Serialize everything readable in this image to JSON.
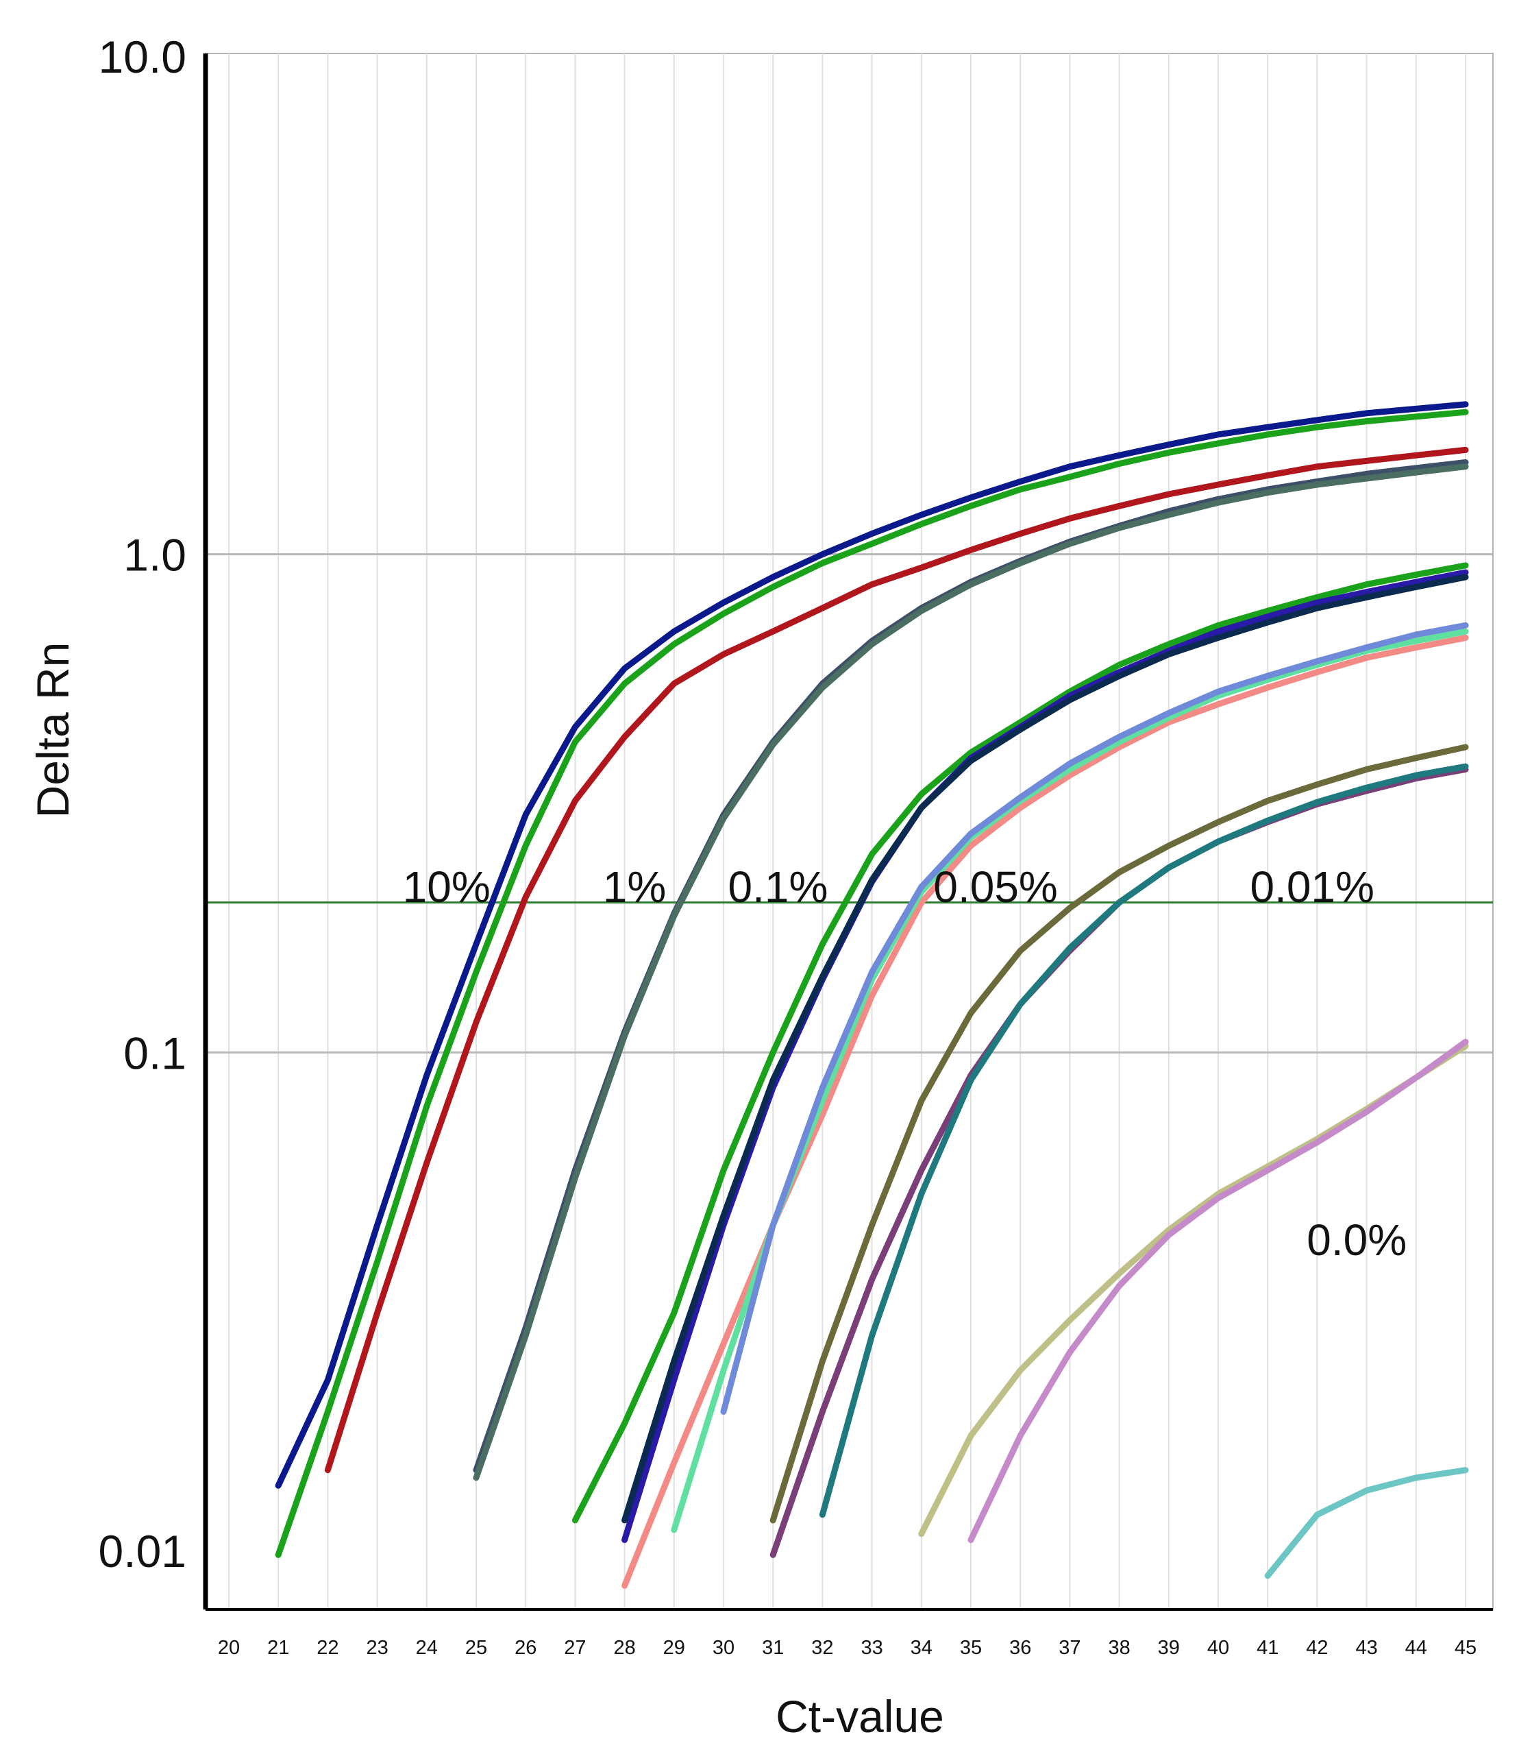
{
  "chart_data": {
    "type": "line",
    "title": "",
    "xlabel": "Ct-value",
    "ylabel": "Delta Rn",
    "yscale": "log",
    "xlim": [
      19.6,
      45.6
    ],
    "ylim": [
      0.0085,
      10.0
    ],
    "grid": "vertical gridlines at each Ct; horizontal gridlines at 1.0 and 0.1",
    "threshold": 0.2,
    "x_ticks": [
      20,
      21,
      22,
      23,
      24,
      25,
      26,
      27,
      28,
      29,
      30,
      31,
      32,
      33,
      34,
      35,
      36,
      37,
      38,
      39,
      40,
      41,
      42,
      43,
      44,
      45
    ],
    "y_ticks": [
      {
        "value": 10.0,
        "label": "10.0"
      },
      {
        "value": 1.0,
        "label": "1.0"
      },
      {
        "value": 0.1,
        "label": "0.1"
      },
      {
        "value": 0.01,
        "label": "0.01"
      }
    ],
    "annotations": [
      {
        "text": "10%",
        "x": 24.4,
        "y": 0.215
      },
      {
        "text": "1%",
        "x": 28.2,
        "y": 0.215
      },
      {
        "text": "0.1%",
        "x": 31.1,
        "y": 0.215
      },
      {
        "text": "0.05%",
        "x": 35.5,
        "y": 0.215
      },
      {
        "text": "0.01%",
        "x": 41.9,
        "y": 0.215
      },
      {
        "text": "0.0%",
        "x": 42.8,
        "y": 0.042
      }
    ],
    "series": [
      {
        "name": "10% replicate 1",
        "group": "10%",
        "color": "#0a1a8c",
        "x": [
          21,
          22,
          23,
          24,
          25,
          26,
          27,
          28,
          29,
          30,
          31,
          32,
          33,
          34,
          35,
          36,
          37,
          38,
          39,
          40,
          41,
          42,
          43,
          44,
          45
        ],
        "y": [
          0.0135,
          0.022,
          0.045,
          0.09,
          0.165,
          0.3,
          0.45,
          0.59,
          0.7,
          0.8,
          0.9,
          1.0,
          1.1,
          1.2,
          1.3,
          1.4,
          1.5,
          1.58,
          1.66,
          1.74,
          1.8,
          1.86,
          1.92,
          1.96,
          2.0
        ]
      },
      {
        "name": "10% replicate 2",
        "group": "10%",
        "color": "#1aa31a",
        "x": [
          21,
          22,
          23,
          24,
          25,
          26,
          27,
          28,
          29,
          30,
          31,
          32,
          33,
          34,
          35,
          36,
          37,
          38,
          39,
          40,
          41,
          42,
          43,
          44,
          45
        ],
        "y": [
          0.0098,
          0.019,
          0.038,
          0.078,
          0.145,
          0.26,
          0.42,
          0.55,
          0.66,
          0.76,
          0.86,
          0.96,
          1.05,
          1.15,
          1.25,
          1.35,
          1.43,
          1.52,
          1.6,
          1.67,
          1.74,
          1.8,
          1.85,
          1.89,
          1.93
        ]
      },
      {
        "name": "10% replicate 3",
        "group": "10%",
        "color": "#b0161c",
        "x": [
          22,
          23,
          24,
          25,
          26,
          27,
          28,
          29,
          30,
          31,
          32,
          33,
          34,
          35,
          36,
          37,
          38,
          39,
          40,
          41,
          42,
          43,
          44,
          45
        ],
        "y": [
          0.0145,
          0.03,
          0.06,
          0.115,
          0.205,
          0.32,
          0.43,
          0.55,
          0.63,
          0.7,
          0.78,
          0.87,
          0.94,
          1.02,
          1.1,
          1.18,
          1.25,
          1.32,
          1.38,
          1.44,
          1.5,
          1.54,
          1.58,
          1.62
        ]
      },
      {
        "name": "1% replicate 1",
        "group": "1%",
        "color": "#3d5068",
        "x": [
          25,
          26,
          27,
          28,
          29,
          30,
          31,
          32,
          33,
          34,
          35,
          36,
          37,
          38,
          39,
          40,
          41,
          42,
          43,
          44,
          45
        ],
        "y": [
          0.0145,
          0.028,
          0.058,
          0.11,
          0.19,
          0.3,
          0.42,
          0.55,
          0.67,
          0.78,
          0.88,
          0.97,
          1.06,
          1.14,
          1.22,
          1.29,
          1.35,
          1.4,
          1.45,
          1.49,
          1.53
        ]
      },
      {
        "name": "1% replicate 2",
        "group": "1%",
        "color": "#4a6e62",
        "x": [
          25,
          26,
          27,
          28,
          29,
          30,
          31,
          32,
          33,
          34,
          35,
          36,
          37,
          38,
          39,
          40,
          41,
          42,
          43,
          44,
          45
        ],
        "y": [
          0.014,
          0.027,
          0.056,
          0.108,
          0.188,
          0.295,
          0.415,
          0.54,
          0.66,
          0.77,
          0.87,
          0.96,
          1.05,
          1.13,
          1.2,
          1.27,
          1.33,
          1.38,
          1.42,
          1.46,
          1.5
        ]
      },
      {
        "name": "0.1% replicate 1",
        "group": "0.1%",
        "color": "#1aa31a",
        "x": [
          27,
          28,
          29,
          30,
          31,
          32,
          33,
          34,
          35,
          36,
          37,
          38,
          39,
          40,
          41,
          42,
          43,
          44,
          45
        ],
        "y": [
          0.0115,
          0.018,
          0.03,
          0.058,
          0.1,
          0.165,
          0.25,
          0.33,
          0.4,
          0.46,
          0.53,
          0.6,
          0.66,
          0.72,
          0.77,
          0.82,
          0.87,
          0.91,
          0.95
        ]
      },
      {
        "name": "0.1% replicate 2",
        "group": "0.1%",
        "color": "#2a1aa8",
        "x": [
          28,
          29,
          30,
          31,
          32,
          33,
          34,
          35,
          36,
          37,
          38,
          39,
          40,
          41,
          42,
          43,
          44,
          45
        ],
        "y": [
          0.0105,
          0.022,
          0.045,
          0.085,
          0.14,
          0.22,
          0.31,
          0.39,
          0.45,
          0.52,
          0.58,
          0.64,
          0.7,
          0.75,
          0.8,
          0.84,
          0.88,
          0.92
        ]
      },
      {
        "name": "0.1% replicate 3",
        "group": "0.1%",
        "color": "#0a2a50",
        "x": [
          28,
          29,
          30,
          31,
          32,
          33,
          34,
          35,
          36,
          37,
          38,
          39,
          40,
          41,
          42,
          43,
          44,
          45
        ],
        "y": [
          0.0115,
          0.024,
          0.047,
          0.088,
          0.142,
          0.222,
          0.31,
          0.385,
          0.445,
          0.51,
          0.57,
          0.63,
          0.68,
          0.73,
          0.78,
          0.82,
          0.86,
          0.9
        ]
      },
      {
        "name": "0.05% replicate 1",
        "group": "0.05%",
        "color": "#f48a86",
        "x": [
          28,
          29,
          30,
          31,
          32,
          33,
          34,
          35,
          36,
          37,
          38,
          39,
          40,
          41,
          42,
          43,
          44,
          45
        ],
        "y": [
          0.0085,
          0.015,
          0.026,
          0.045,
          0.075,
          0.13,
          0.2,
          0.26,
          0.31,
          0.36,
          0.41,
          0.46,
          0.5,
          0.54,
          0.58,
          0.62,
          0.65,
          0.68
        ]
      },
      {
        "name": "0.05% replicate 2",
        "group": "0.05%",
        "color": "#5fe0a0",
        "x": [
          29,
          30,
          31,
          32,
          33,
          34,
          35,
          36,
          37,
          38,
          39,
          40,
          41,
          42,
          43,
          44,
          45
        ],
        "y": [
          0.011,
          0.023,
          0.045,
          0.08,
          0.14,
          0.21,
          0.27,
          0.32,
          0.37,
          0.42,
          0.47,
          0.52,
          0.56,
          0.6,
          0.64,
          0.67,
          0.7
        ]
      },
      {
        "name": "0.05% replicate 3",
        "group": "0.05%",
        "color": "#6f8ad8",
        "x": [
          30,
          31,
          32,
          33,
          34,
          35,
          36,
          37,
          38,
          39,
          40,
          41,
          42,
          43,
          44,
          45
        ],
        "y": [
          0.019,
          0.045,
          0.085,
          0.145,
          0.215,
          0.275,
          0.325,
          0.38,
          0.43,
          0.48,
          0.53,
          0.57,
          0.61,
          0.65,
          0.69,
          0.72
        ]
      },
      {
        "name": "0.01% replicate 1",
        "group": "0.01%",
        "color": "#6b6a3a",
        "x": [
          31,
          32,
          33,
          34,
          35,
          36,
          37,
          38,
          39,
          40,
          41,
          42,
          43,
          44,
          45
        ],
        "y": [
          0.0115,
          0.024,
          0.045,
          0.08,
          0.12,
          0.16,
          0.195,
          0.23,
          0.26,
          0.29,
          0.32,
          0.345,
          0.37,
          0.39,
          0.41
        ]
      },
      {
        "name": "0.01% replicate 2",
        "group": "0.01%",
        "color": "#7a3e78",
        "x": [
          31,
          32,
          33,
          34,
          35,
          36,
          37,
          38,
          39,
          40,
          41,
          42,
          43,
          44,
          45
        ],
        "y": [
          0.0098,
          0.019,
          0.035,
          0.058,
          0.09,
          0.125,
          0.16,
          0.2,
          0.235,
          0.265,
          0.29,
          0.315,
          0.335,
          0.355,
          0.37
        ]
      },
      {
        "name": "0.01% replicate 3",
        "group": "0.01%",
        "color": "#1f7a80",
        "x": [
          32,
          33,
          34,
          35,
          36,
          37,
          38,
          39,
          40,
          41,
          42,
          43,
          44,
          45
        ],
        "y": [
          0.0118,
          0.027,
          0.052,
          0.088,
          0.125,
          0.162,
          0.2,
          0.235,
          0.265,
          0.292,
          0.318,
          0.34,
          0.36,
          0.375
        ]
      },
      {
        "name": "0.0% replicate 1",
        "group": "0.0%",
        "color": "#bfbf88",
        "x": [
          34,
          35,
          36,
          37,
          38,
          39,
          40,
          41,
          42,
          43,
          44,
          45
        ],
        "y": [
          0.0108,
          0.017,
          0.023,
          0.029,
          0.036,
          0.044,
          0.052,
          0.059,
          0.067,
          0.077,
          0.089,
          0.103
        ]
      },
      {
        "name": "0.0% replicate 2",
        "group": "0.0%",
        "color": "#c58ac9",
        "x": [
          35,
          36,
          37,
          38,
          39,
          40,
          41,
          42,
          43,
          44,
          45
        ],
        "y": [
          0.0105,
          0.017,
          0.025,
          0.034,
          0.043,
          0.051,
          0.058,
          0.066,
          0.076,
          0.089,
          0.105
        ]
      },
      {
        "name": "0.0% replicate 3",
        "group": "0.0%",
        "color": "#6cc6c4",
        "x": [
          41,
          42,
          43,
          44,
          45
        ],
        "y": [
          0.0089,
          0.0118,
          0.0132,
          0.014,
          0.0145
        ]
      }
    ]
  }
}
